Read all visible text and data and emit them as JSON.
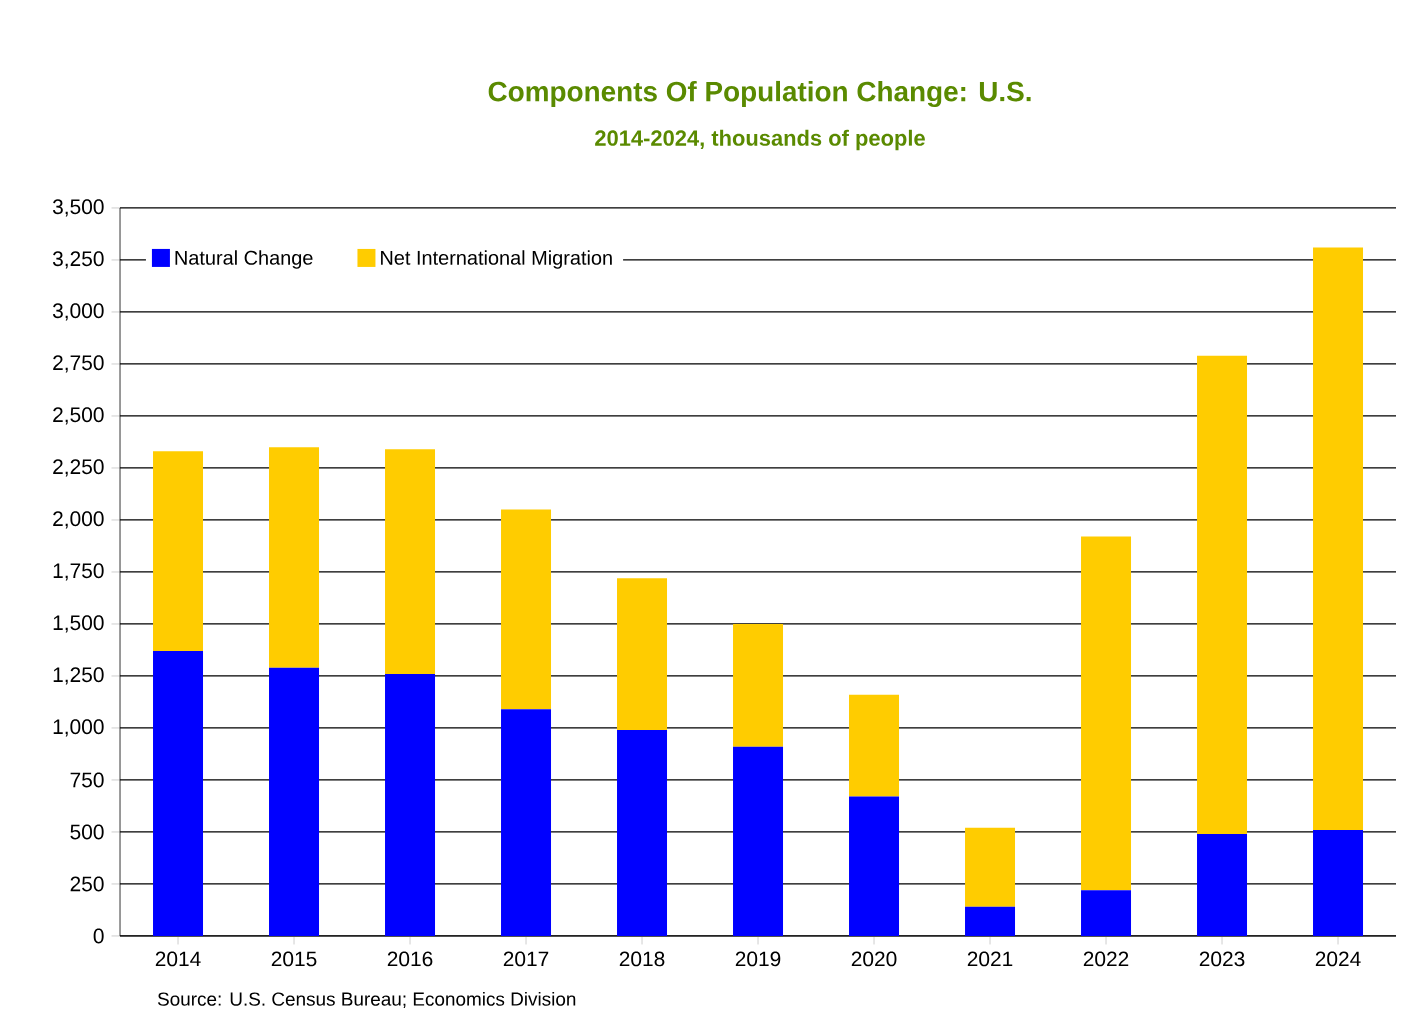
{
  "chart_data": {
    "type": "bar",
    "stacked": true,
    "title": "Components Of Population Change: U.S.",
    "subtitle": "2014-2024, thousands of people",
    "categories": [
      "2014",
      "2015",
      "2016",
      "2017",
      "2018",
      "2019",
      "2020",
      "2021",
      "2022",
      "2023",
      "2024"
    ],
    "series": [
      {
        "name": "Natural Change",
        "color": "#0000ff",
        "values": [
          1370,
          1290,
          1260,
          1090,
          990,
          910,
          670,
          140,
          220,
          490,
          510
        ]
      },
      {
        "name": "Net International Migration",
        "color": "#ffcc00",
        "values": [
          960,
          1060,
          1080,
          960,
          730,
          590,
          490,
          380,
          1700,
          2300,
          2800
        ]
      }
    ],
    "ylim": [
      0,
      3500
    ],
    "yticks": [
      0,
      250,
      500,
      750,
      {
        "value": 1000,
        "label": "1,000"
      },
      {
        "value": 1250,
        "label": "1,250"
      },
      {
        "value": 1500,
        "label": "1,500"
      },
      {
        "value": 1750,
        "label": "1,750"
      },
      {
        "value": 2000,
        "label": "2,000"
      },
      {
        "value": 2250,
        "label": "2,250"
      },
      {
        "value": 2500,
        "label": "2,500"
      },
      {
        "value": 2750,
        "label": "2,750"
      },
      {
        "value": 3000,
        "label": "3,000"
      },
      {
        "value": 3250,
        "label": "3,250"
      },
      {
        "value": 3500,
        "label": "3,500"
      }
    ],
    "grid": "y",
    "legend": "top left",
    "annotations": [
      "Source: U.S. Census Bureau; Economics Division"
    ]
  }
}
